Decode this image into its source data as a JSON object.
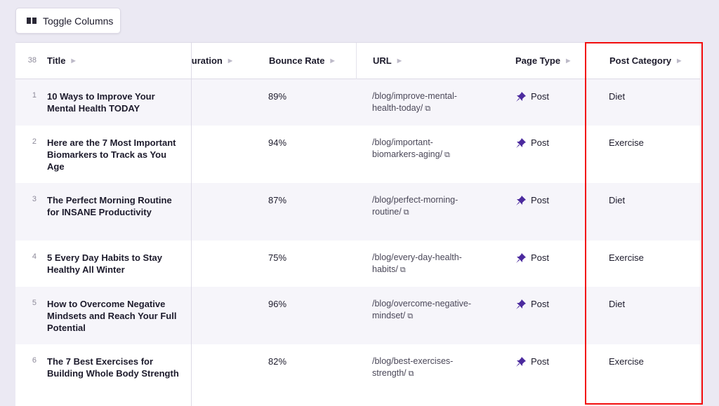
{
  "toolbar": {
    "toggle_columns_label": "Toggle Columns"
  },
  "table": {
    "row_count": "38",
    "headers": {
      "title": "Title",
      "duration": "uration",
      "bounce_rate": "Bounce Rate",
      "url": "URL",
      "page_type": "Page Type",
      "post_category": "Post Category"
    },
    "rows": [
      {
        "num": "1",
        "title": "10 Ways to Improve Your Mental Health TODAY",
        "bounce": "89%",
        "url": "/blog/improve-mental-health-today/",
        "type": "Post",
        "category": "Diet"
      },
      {
        "num": "2",
        "title": "Here are the 7 Most Important Biomarkers to Track as You Age",
        "bounce": "94%",
        "url": "/blog/important-biomarkers-aging/",
        "type": "Post",
        "category": "Exercise"
      },
      {
        "num": "3",
        "title": "The Perfect Morning Routine for INSANE Productivity",
        "bounce": "87%",
        "url": "/blog/perfect-morning-routine/",
        "type": "Post",
        "category": "Diet"
      },
      {
        "num": "4",
        "title": "5 Every Day Habits to Stay Healthy All Winter",
        "bounce": "75%",
        "url": "/blog/every-day-health-habits/",
        "type": "Post",
        "category": "Exercise"
      },
      {
        "num": "5",
        "title": "How to Overcome Negative Mindsets and Reach Your Full Potential",
        "bounce": "96%",
        "url": "/blog/overcome-negative-mindset/",
        "type": "Post",
        "category": "Diet"
      },
      {
        "num": "6",
        "title": "The 7 Best Exercises for Building Whole Body Strength",
        "bounce": "82%",
        "url": "/blog/best-exercises-strength/",
        "type": "Post",
        "category": "Exercise"
      }
    ]
  },
  "colors": {
    "accent": "#4b2a9e",
    "highlight": "#f20d0d"
  }
}
